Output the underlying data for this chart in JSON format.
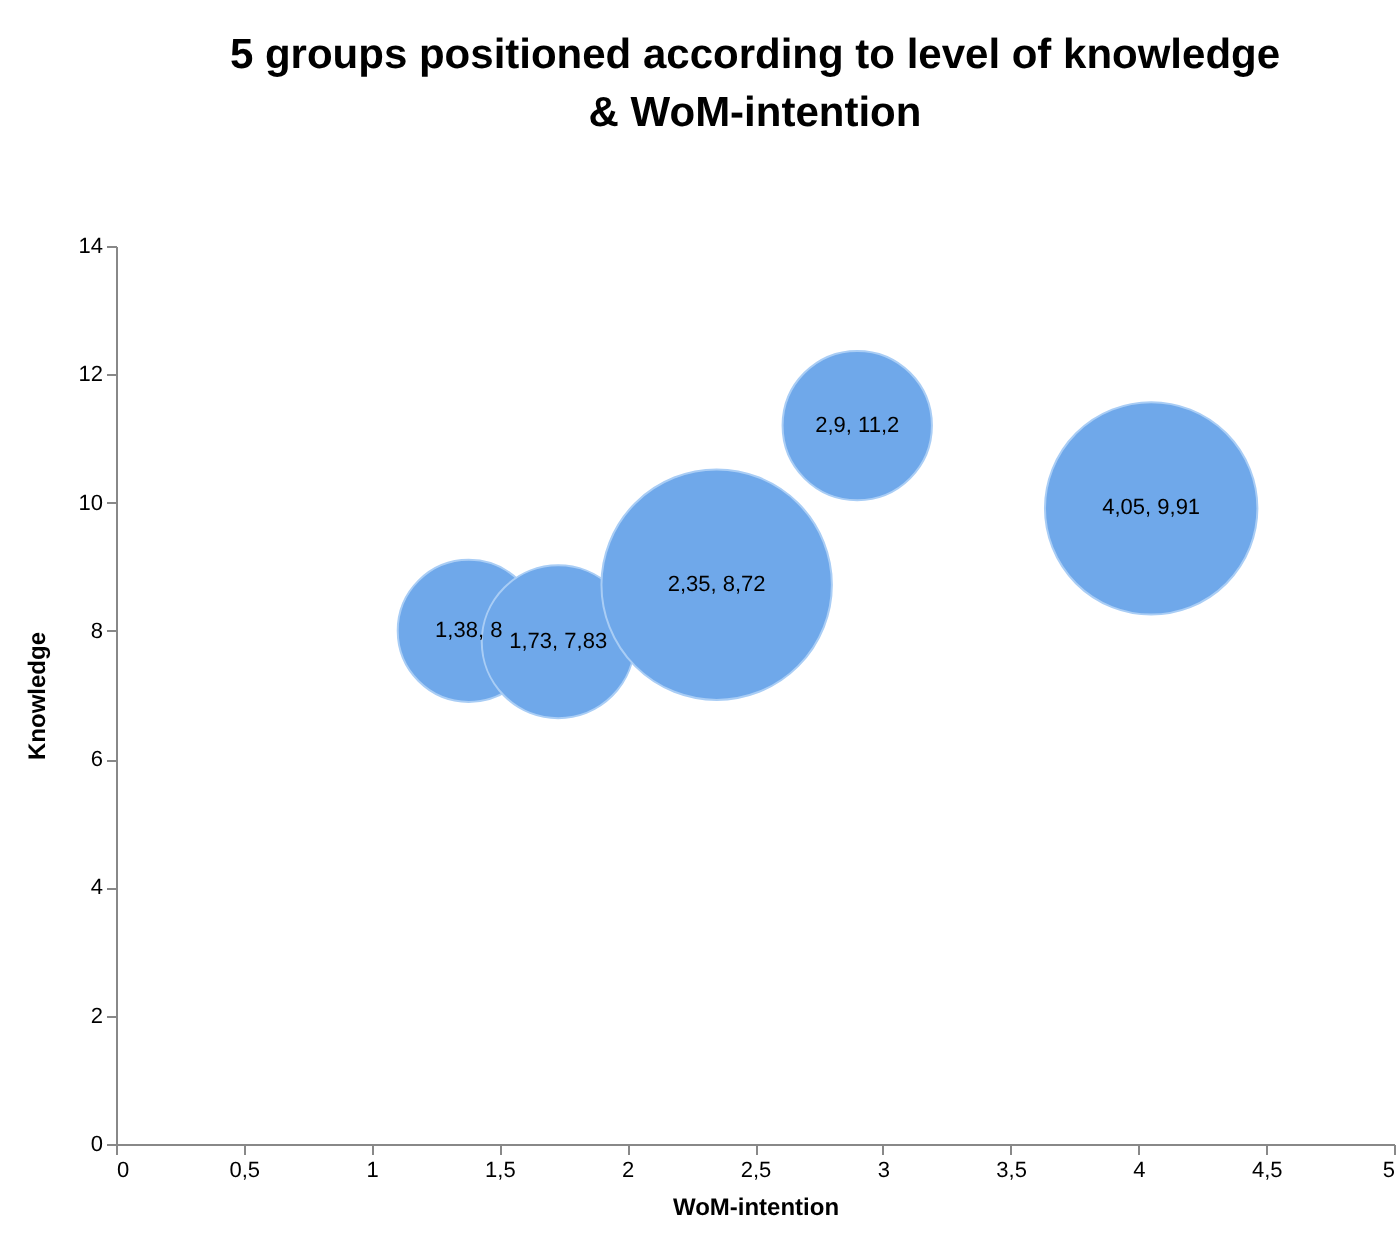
{
  "chart_data": {
    "type": "bubble",
    "title": "5 groups positioned according to level of knowledge\n& WoM-intention",
    "xlabel": "WoM-intention",
    "ylabel": "Knowledge",
    "x": [
      1.38,
      1.73,
      2.35,
      2.9,
      4.05
    ],
    "series": [
      {
        "color": "#6fa8ea",
        "values": [
          8,
          7.83,
          8.72,
          11.2,
          9.91
        ],
        "sizes": [
          0.38,
          0.44,
          1,
          0.42,
          0.85
        ],
        "value_labels": [
          "1,38, 8",
          "1,73, 7,83",
          "2,35, 8,72",
          "2,9, 11,2",
          "4,05, 9,91"
        ]
      }
    ],
    "xlim": [
      0,
      5
    ],
    "xticks": [
      0,
      {
        "value": 0.5,
        "label": "0,5"
      },
      1,
      {
        "value": 1.5,
        "label": "1,5"
      },
      2,
      {
        "value": 2.5,
        "label": "2,5"
      },
      3,
      {
        "value": 3.5,
        "label": "3,5"
      },
      4,
      {
        "value": 4.5,
        "label": "4,5"
      },
      5
    ],
    "ylim": [
      0,
      14
    ],
    "yticks": [
      0,
      2,
      4,
      6,
      8,
      10,
      12,
      14
    ],
    "grid": false
  }
}
